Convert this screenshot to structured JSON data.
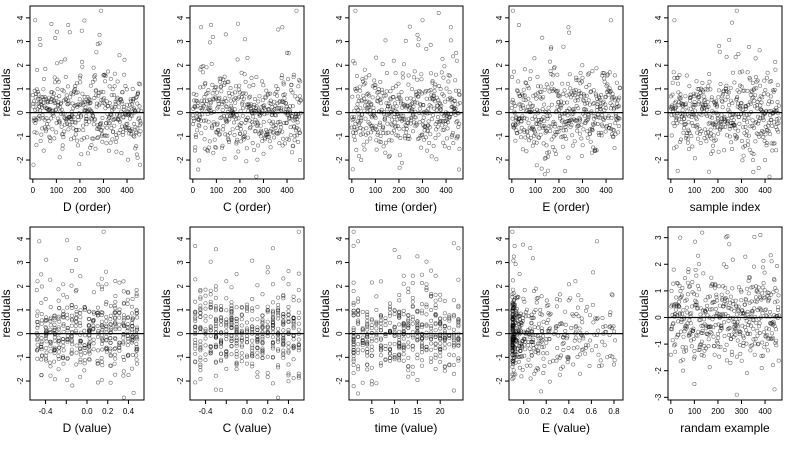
{
  "figure": {
    "rows": 2,
    "cols": 5
  },
  "chart_data": [
    {
      "type": "scatter",
      "panel": "d-order",
      "xlabel": "D (order)",
      "ylabel": "residuals",
      "xlim": [
        -12,
        472
      ],
      "ylim": [
        -2.8,
        4.5
      ],
      "xticks": [
        0,
        100,
        200,
        300,
        400
      ],
      "xtick_labels": [
        "0",
        "100",
        "200",
        "300",
        "400"
      ],
      "yticks": [
        -2,
        -1,
        0,
        1,
        2,
        3,
        4
      ],
      "ytick_labels": [
        "-2",
        "-1",
        "0",
        "1",
        "2",
        "3",
        "4"
      ],
      "hline": 0,
      "x_mode": "index",
      "n": 460,
      "notable_points": [
        {
          "x": 10,
          "y": 3.9
        },
        {
          "x": 290,
          "y": 4.3
        },
        {
          "x": 150,
          "y": 3.7
        },
        {
          "x": 455,
          "y": -2.2
        },
        {
          "x": 445,
          "y": -1.9
        }
      ]
    },
    {
      "type": "scatter",
      "panel": "c-order",
      "xlabel": "C (order)",
      "ylabel": "residuals",
      "xlim": [
        -12,
        472
      ],
      "ylim": [
        -2.8,
        4.5
      ],
      "xticks": [
        0,
        100,
        200,
        300,
        400
      ],
      "xtick_labels": [
        "0",
        "100",
        "200",
        "300",
        "400"
      ],
      "yticks": [
        -2,
        -1,
        0,
        1,
        2,
        3,
        4
      ],
      "ytick_labels": [
        "-2",
        "-1",
        "0",
        "1",
        "2",
        "3",
        "4"
      ],
      "hline": 0,
      "x_mode": "index",
      "n": 460,
      "notable_points": [
        {
          "x": 440,
          "y": 4.3
        },
        {
          "x": 140,
          "y": 3.3
        },
        {
          "x": 380,
          "y": 3.6
        },
        {
          "x": 270,
          "y": -2.7
        },
        {
          "x": 455,
          "y": -2.0
        }
      ]
    },
    {
      "type": "scatter",
      "panel": "time-order",
      "xlabel": "time (order)",
      "ylabel": "residuals",
      "xlim": [
        -12,
        472
      ],
      "ylim": [
        -2.8,
        4.5
      ],
      "xticks": [
        0,
        100,
        200,
        300,
        400
      ],
      "xtick_labels": [
        "0",
        "100",
        "200",
        "300",
        "400"
      ],
      "yticks": [
        -2,
        -1,
        0,
        1,
        2,
        3,
        4
      ],
      "ytick_labels": [
        "-2",
        "-1",
        "0",
        "1",
        "2",
        "3",
        "4"
      ],
      "hline": 0,
      "x_mode": "index",
      "n": 460,
      "notable_points": [
        {
          "x": 15,
          "y": 4.3
        },
        {
          "x": 300,
          "y": 3.9
        },
        {
          "x": 420,
          "y": 3.6
        },
        {
          "x": 455,
          "y": -2.4
        },
        {
          "x": 40,
          "y": -2.0
        }
      ]
    },
    {
      "type": "scatter",
      "panel": "e-order",
      "xlabel": "E (order)",
      "ylabel": "residuals",
      "xlim": [
        -12,
        472
      ],
      "ylim": [
        -2.8,
        4.5
      ],
      "xticks": [
        0,
        100,
        200,
        300,
        400
      ],
      "xtick_labels": [
        "0",
        "100",
        "200",
        "300",
        "400"
      ],
      "yticks": [
        -2,
        -1,
        0,
        1,
        2,
        3,
        4
      ],
      "ytick_labels": [
        "-2",
        "-1",
        "0",
        "1",
        "2",
        "3",
        "4"
      ],
      "hline": 0,
      "x_mode": "index",
      "n": 460,
      "notable_points": [
        {
          "x": 5,
          "y": 4.3
        },
        {
          "x": 30,
          "y": 3.7
        },
        {
          "x": 240,
          "y": 3.6
        },
        {
          "x": 420,
          "y": 3.9
        },
        {
          "x": 140,
          "y": -2.6
        }
      ]
    },
    {
      "type": "scatter",
      "panel": "sample-index",
      "xlabel": "sample index",
      "ylabel": "residuals",
      "xlim": [
        -12,
        472
      ],
      "ylim": [
        -2.8,
        4.5
      ],
      "xticks": [
        0,
        100,
        200,
        300,
        400
      ],
      "xtick_labels": [
        "0",
        "100",
        "200",
        "300",
        "400"
      ],
      "yticks": [
        -2,
        -1,
        0,
        1,
        2,
        3,
        4
      ],
      "ytick_labels": [
        "-2",
        "-1",
        "0",
        "1",
        "2",
        "3",
        "4"
      ],
      "hline": 0,
      "x_mode": "index",
      "n": 460,
      "notable_points": [
        {
          "x": 280,
          "y": 4.3
        },
        {
          "x": 260,
          "y": 3.8
        },
        {
          "x": 15,
          "y": 3.9
        },
        {
          "x": 350,
          "y": -2.5
        },
        {
          "x": 400,
          "y": -2.0
        }
      ]
    },
    {
      "type": "scatter",
      "panel": "d-value",
      "xlabel": "D (value)",
      "ylabel": "residuals",
      "xlim": [
        -0.55,
        0.55
      ],
      "ylim": [
        -2.8,
        4.5
      ],
      "xticks": [
        -0.4,
        -0.2,
        0.0,
        0.2,
        0.4
      ],
      "xtick_labels": [
        "-0.4",
        "",
        "0.0",
        "0.2",
        "0.4"
      ],
      "yticks": [
        -2,
        -1,
        0,
        1,
        2,
        3,
        4
      ],
      "ytick_labels": [
        "-2",
        "-1",
        "0",
        "1",
        "2",
        "3",
        "4"
      ],
      "hline": 0,
      "x_mode": "spread",
      "x_range": [
        -0.5,
        0.5
      ],
      "n": 460,
      "notable_points": [
        {
          "x": -0.46,
          "y": 3.9
        },
        {
          "x": 0.16,
          "y": 4.3
        },
        {
          "x": -0.08,
          "y": 3.6
        },
        {
          "x": 0.45,
          "y": -2.5
        }
      ]
    },
    {
      "type": "scatter",
      "panel": "c-value",
      "xlabel": "C (value)",
      "ylabel": "residuals",
      "xlim": [
        -0.55,
        0.55
      ],
      "ylim": [
        -2.8,
        4.5
      ],
      "xticks": [
        -0.4,
        -0.2,
        0.0,
        0.2,
        0.4
      ],
      "xtick_labels": [
        "-0.4",
        "",
        "0.0",
        "0.2",
        "0.4"
      ],
      "yticks": [
        -2,
        -1,
        0,
        1,
        2,
        3,
        4
      ],
      "ytick_labels": [
        "-2",
        "-1",
        "0",
        "1",
        "2",
        "3",
        "4"
      ],
      "hline": 0,
      "x_mode": "discrete",
      "x_levels": [
        -0.5,
        -0.45,
        -0.4,
        -0.35,
        -0.3,
        -0.25,
        -0.2,
        -0.15,
        -0.1,
        -0.05,
        0.0,
        0.05,
        0.1,
        0.15,
        0.2,
        0.25,
        0.3,
        0.35,
        0.4,
        0.45,
        0.5
      ],
      "n": 460,
      "notable_points": [
        {
          "x": 0.5,
          "y": 4.3
        },
        {
          "x": -0.5,
          "y": 3.7
        },
        {
          "x": 0.25,
          "y": 3.6
        },
        {
          "x": 0.3,
          "y": -2.7
        }
      ]
    },
    {
      "type": "scatter",
      "panel": "time-value",
      "xlabel": "time (value)",
      "ylabel": "residuals",
      "xlim": [
        0,
        25
      ],
      "ylim": [
        -2.8,
        4.5
      ],
      "xticks": [
        5,
        10,
        15,
        20
      ],
      "xtick_labels": [
        "5",
        "10",
        "15",
        "20"
      ],
      "yticks": [
        -2,
        -1,
        0,
        1,
        2,
        3,
        4
      ],
      "ytick_labels": [
        "-2",
        "-1",
        "0",
        "1",
        "2",
        "3",
        "4"
      ],
      "hline": 0,
      "x_mode": "discrete",
      "x_levels": [
        1,
        2,
        3,
        4,
        5,
        6,
        7,
        8,
        9,
        10,
        11,
        12,
        13,
        14,
        15,
        16,
        17,
        18,
        19,
        20,
        21,
        22,
        23,
        24
      ],
      "n": 460,
      "notable_points": [
        {
          "x": 1,
          "y": 4.3
        },
        {
          "x": 2,
          "y": 3.9
        },
        {
          "x": 24,
          "y": 3.6
        },
        {
          "x": 23,
          "y": -2.4
        }
      ]
    },
    {
      "type": "scatter",
      "panel": "e-value",
      "xlabel": "E (value)",
      "ylabel": "residuals",
      "xlim": [
        -0.13,
        0.88
      ],
      "ylim": [
        -2.8,
        4.5
      ],
      "xticks": [
        0.0,
        0.2,
        0.4,
        0.6,
        0.8
      ],
      "xtick_labels": [
        "0.0",
        "0.2",
        "0.4",
        "0.6",
        "0.8"
      ],
      "yticks": [
        -2,
        -1,
        0,
        1,
        2,
        3,
        4
      ],
      "ytick_labels": [
        "-2",
        "-1",
        "0",
        "1",
        "2",
        "3",
        "4"
      ],
      "hline": 0,
      "x_mode": "skewed",
      "x_range": [
        -0.1,
        0.82
      ],
      "n": 460,
      "notable_points": [
        {
          "x": -0.1,
          "y": 4.3
        },
        {
          "x": -0.08,
          "y": 3.7
        },
        {
          "x": 0.65,
          "y": 3.9
        },
        {
          "x": 0.8,
          "y": -1.3
        },
        {
          "x": 0.55,
          "y": -0.6
        }
      ]
    },
    {
      "type": "scatter",
      "panel": "random-example",
      "xlabel": "randam example",
      "ylabel": "residuals",
      "xlim": [
        -12,
        472
      ],
      "ylim": [
        -3.1,
        3.4
      ],
      "xticks": [
        0,
        100,
        200,
        300,
        400
      ],
      "xtick_labels": [
        "0",
        "100",
        "200",
        "300",
        "400"
      ],
      "yticks": [
        -3,
        -2,
        -1,
        0,
        1,
        2,
        3
      ],
      "ytick_labels": [
        "-3",
        "-2",
        "-1",
        "0",
        "1",
        "2",
        "3"
      ],
      "hline": 0,
      "x_mode": "index",
      "n": 460,
      "notable_points": [
        {
          "x": 40,
          "y": 3.0
        },
        {
          "x": 380,
          "y": 3.1
        },
        {
          "x": 100,
          "y": -2.5
        },
        {
          "x": 440,
          "y": -2.7
        },
        {
          "x": 280,
          "y": -2.9
        }
      ]
    }
  ]
}
